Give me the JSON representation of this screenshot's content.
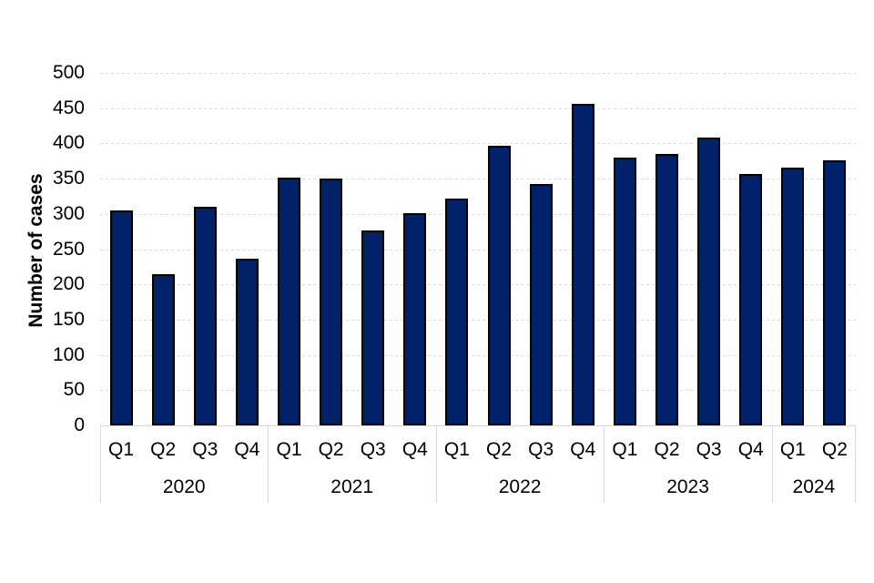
{
  "chart": {
    "ylabel": "Number of cases"
  },
  "chart_data": {
    "type": "bar",
    "title": "",
    "xlabel": "",
    "ylabel": "Number of cases",
    "ylim": [
      0,
      500
    ],
    "ytick_step": 50,
    "yticks": [
      0,
      50,
      100,
      150,
      200,
      250,
      300,
      350,
      400,
      450,
      500
    ],
    "grid": "horizontal dashed gridlines",
    "legend": "none",
    "colors": {
      "bar_fill": "#012169",
      "bar_border": "#000000",
      "gridline": "#d9d9d9",
      "axis_line": "#d9d9d9",
      "text": "#000000"
    },
    "x_axis_structure": "quarters grouped by year",
    "groups": [
      {
        "year": "2020",
        "quarters": [
          "Q1",
          "Q2",
          "Q3",
          "Q4"
        ],
        "values": [
          305,
          215,
          310,
          237
        ]
      },
      {
        "year": "2021",
        "quarters": [
          "Q1",
          "Q2",
          "Q3",
          "Q4"
        ],
        "values": [
          351,
          350,
          277,
          301
        ]
      },
      {
        "year": "2022",
        "quarters": [
          "Q1",
          "Q2",
          "Q3",
          "Q4"
        ],
        "values": [
          322,
          397,
          343,
          456
        ]
      },
      {
        "year": "2023",
        "quarters": [
          "Q1",
          "Q2",
          "Q3",
          "Q4"
        ],
        "values": [
          380,
          385,
          408,
          356
        ]
      },
      {
        "year": "2024",
        "quarters": [
          "Q1",
          "Q2"
        ],
        "values": [
          365,
          376
        ]
      }
    ]
  }
}
